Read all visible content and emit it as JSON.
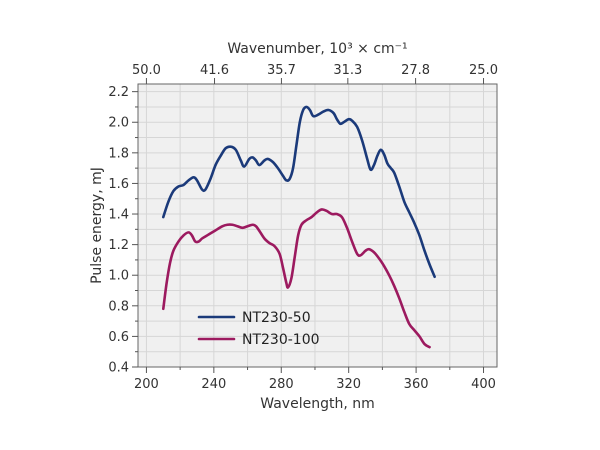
{
  "chart_data": {
    "type": "line",
    "xlabel": "Wavelength, nm",
    "ylabel": "Pulse energy, mJ",
    "top_xlabel": "Wavenumber, 10³ × cm⁻¹",
    "xlim": [
      195,
      408
    ],
    "ylim": [
      0.4,
      2.25
    ],
    "x_ticks": [
      200,
      240,
      280,
      320,
      360,
      400
    ],
    "y_ticks": [
      0.4,
      0.6,
      0.8,
      1.0,
      1.2,
      1.4,
      1.6,
      1.8,
      2.0,
      2.2
    ],
    "y_tick_labels": [
      "0.4",
      "0.6",
      "0.8",
      "1.0",
      "1.2",
      "1.4",
      "1.6",
      "1.8",
      "2.0",
      "2.2"
    ],
    "top_ticks": [
      {
        "label": "50.0",
        "wavelength": 200.0
      },
      {
        "label": "41.6",
        "wavelength": 240.4
      },
      {
        "label": "35.7",
        "wavelength": 280.1
      },
      {
        "label": "31.3",
        "wavelength": 319.5
      },
      {
        "label": "27.8",
        "wavelength": 359.7
      },
      {
        "label": "25.0",
        "wavelength": 400.0
      }
    ],
    "grid": true,
    "legend_position": "bottom-left",
    "series": [
      {
        "name": "NT230-50",
        "color": "#1b3a7a",
        "points": [
          [
            210,
            1.38
          ],
          [
            213,
            1.48
          ],
          [
            216,
            1.55
          ],
          [
            219,
            1.58
          ],
          [
            222,
            1.59
          ],
          [
            225,
            1.62
          ],
          [
            228,
            1.64
          ],
          [
            230,
            1.62
          ],
          [
            233,
            1.56
          ],
          [
            235,
            1.56
          ],
          [
            238,
            1.63
          ],
          [
            241,
            1.72
          ],
          [
            244,
            1.78
          ],
          [
            247,
            1.83
          ],
          [
            250,
            1.84
          ],
          [
            253,
            1.82
          ],
          [
            256,
            1.75
          ],
          [
            258,
            1.71
          ],
          [
            261,
            1.76
          ],
          [
            263,
            1.77
          ],
          [
            265,
            1.75
          ],
          [
            267,
            1.72
          ],
          [
            270,
            1.75
          ],
          [
            272,
            1.76
          ],
          [
            275,
            1.74
          ],
          [
            278,
            1.7
          ],
          [
            281,
            1.65
          ],
          [
            283,
            1.62
          ],
          [
            285,
            1.63
          ],
          [
            287,
            1.7
          ],
          [
            289,
            1.85
          ],
          [
            291,
            2.0
          ],
          [
            293,
            2.08
          ],
          [
            295,
            2.1
          ],
          [
            297,
            2.08
          ],
          [
            299,
            2.04
          ],
          [
            302,
            2.05
          ],
          [
            305,
            2.07
          ],
          [
            308,
            2.08
          ],
          [
            311,
            2.06
          ],
          [
            313,
            2.02
          ],
          [
            315,
            1.99
          ],
          [
            317,
            2.0
          ],
          [
            320,
            2.02
          ],
          [
            322,
            2.01
          ],
          [
            325,
            1.97
          ],
          [
            328,
            1.88
          ],
          [
            331,
            1.76
          ],
          [
            333,
            1.69
          ],
          [
            335,
            1.72
          ],
          [
            337,
            1.78
          ],
          [
            339,
            1.82
          ],
          [
            341,
            1.79
          ],
          [
            343,
            1.73
          ],
          [
            345,
            1.7
          ],
          [
            347,
            1.67
          ],
          [
            350,
            1.58
          ],
          [
            353,
            1.48
          ],
          [
            356,
            1.41
          ],
          [
            359,
            1.34
          ],
          [
            362,
            1.26
          ],
          [
            365,
            1.16
          ],
          [
            368,
            1.07
          ],
          [
            371,
            0.99
          ]
        ]
      },
      {
        "name": "NT230-100",
        "color": "#9c1a5f",
        "points": [
          [
            210,
            0.78
          ],
          [
            212,
            0.95
          ],
          [
            214,
            1.08
          ],
          [
            216,
            1.16
          ],
          [
            219,
            1.22
          ],
          [
            222,
            1.26
          ],
          [
            225,
            1.28
          ],
          [
            227,
            1.26
          ],
          [
            229,
            1.22
          ],
          [
            231,
            1.22
          ],
          [
            233,
            1.24
          ],
          [
            236,
            1.26
          ],
          [
            239,
            1.28
          ],
          [
            242,
            1.3
          ],
          [
            245,
            1.32
          ],
          [
            248,
            1.33
          ],
          [
            251,
            1.33
          ],
          [
            254,
            1.32
          ],
          [
            257,
            1.31
          ],
          [
            260,
            1.32
          ],
          [
            263,
            1.33
          ],
          [
            265,
            1.32
          ],
          [
            267,
            1.29
          ],
          [
            270,
            1.24
          ],
          [
            273,
            1.21
          ],
          [
            276,
            1.19
          ],
          [
            279,
            1.14
          ],
          [
            281,
            1.05
          ],
          [
            283,
            0.95
          ],
          [
            284,
            0.92
          ],
          [
            286,
            0.98
          ],
          [
            288,
            1.12
          ],
          [
            290,
            1.26
          ],
          [
            292,
            1.33
          ],
          [
            295,
            1.36
          ],
          [
            298,
            1.38
          ],
          [
            301,
            1.41
          ],
          [
            304,
            1.43
          ],
          [
            307,
            1.42
          ],
          [
            310,
            1.4
          ],
          [
            313,
            1.4
          ],
          [
            316,
            1.38
          ],
          [
            319,
            1.31
          ],
          [
            322,
            1.22
          ],
          [
            325,
            1.14
          ],
          [
            327,
            1.13
          ],
          [
            330,
            1.16
          ],
          [
            332,
            1.17
          ],
          [
            335,
            1.15
          ],
          [
            338,
            1.11
          ],
          [
            341,
            1.06
          ],
          [
            344,
            1.0
          ],
          [
            347,
            0.93
          ],
          [
            350,
            0.85
          ],
          [
            353,
            0.76
          ],
          [
            356,
            0.68
          ],
          [
            359,
            0.64
          ],
          [
            362,
            0.6
          ],
          [
            365,
            0.55
          ],
          [
            368,
            0.53
          ]
        ]
      }
    ]
  }
}
